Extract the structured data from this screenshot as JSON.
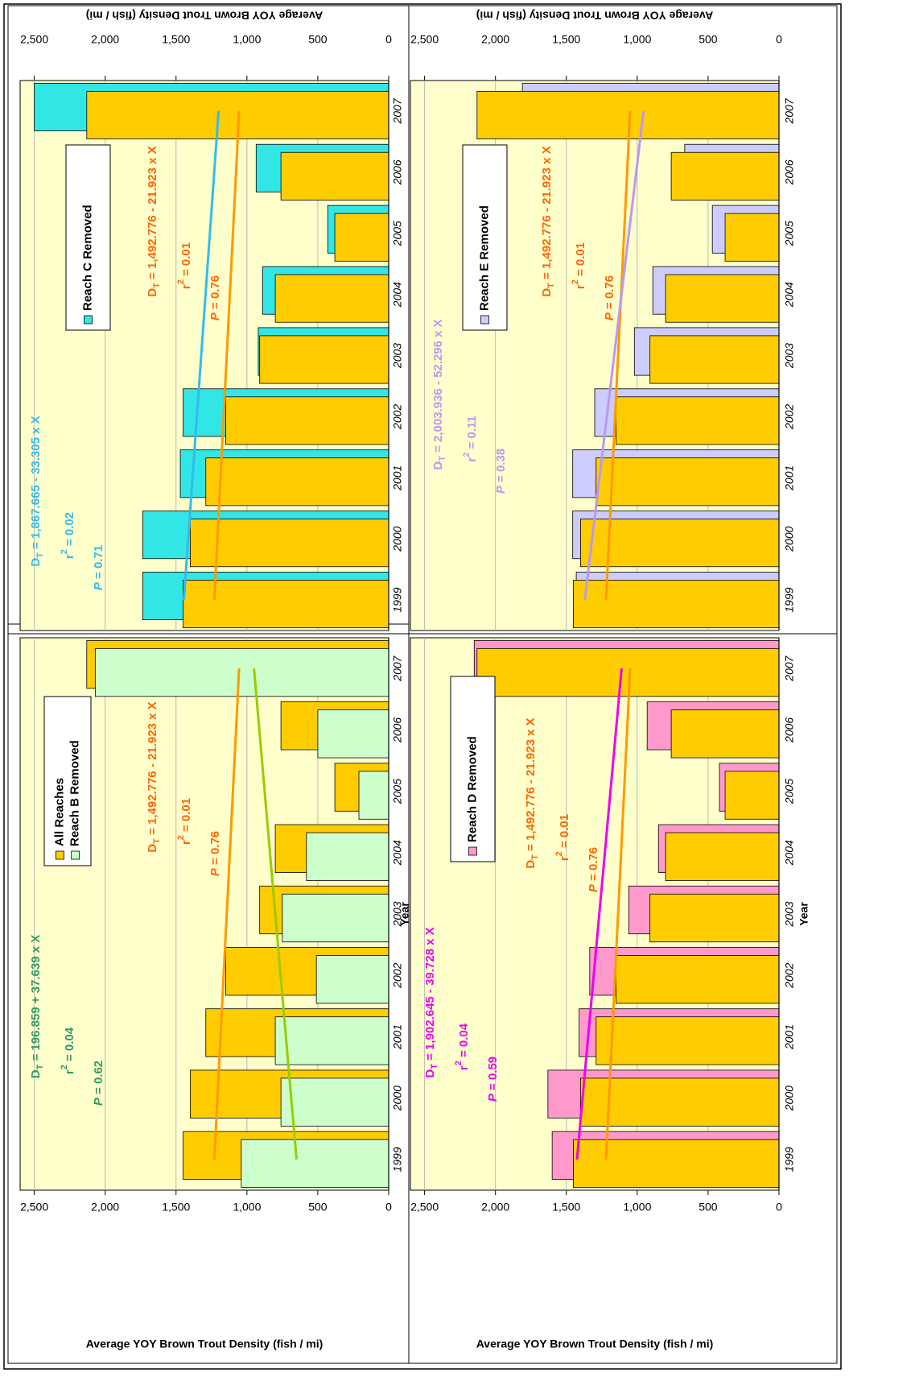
{
  "chart_data": [
    {
      "type": "bar",
      "categories": [
        "1999",
        "2000",
        "2001",
        "2002",
        "2003",
        "2004",
        "2005",
        "2006",
        "2007"
      ],
      "series": [
        {
          "name": "All Reaches",
          "color": "#ffcc00",
          "values": [
            1450,
            1400,
            1290,
            1150,
            910,
            800,
            380,
            760,
            2130
          ]
        },
        {
          "name": "Reach B Removed",
          "color": "#ccffcc",
          "values": [
            1040,
            760,
            800,
            510,
            750,
            580,
            210,
            500,
            2070
          ]
        }
      ],
      "trend_lines": [
        {
          "color": "#ff9900",
          "x": [
            "1999",
            "2007"
          ],
          "values": [
            1230,
            1055
          ]
        },
        {
          "color": "#99cc00",
          "x": [
            "1999",
            "2007"
          ],
          "values": [
            650,
            950
          ]
        }
      ],
      "annotations": [
        {
          "color": "#339966",
          "equation": {
            "lhs": "D",
            "sub": "T",
            "rhs": " = 196.859 + 37.639 x X"
          },
          "r2": {
            "lhs": "r",
            "sup": "2",
            "rhs": " = 0.04"
          },
          "p": {
            "lhs": "P",
            "rhs": " = 0.62"
          }
        },
        {
          "color": "#ff6600",
          "equation": {
            "lhs": "D",
            "sub": "T",
            "rhs": " = 1,492.776 - 21.923 x X"
          },
          "r2": {
            "lhs": "r",
            "sup": "2",
            "rhs": " = 0.01"
          },
          "p": {
            "lhs": "P",
            "rhs": " = 0.76"
          }
        }
      ],
      "y_label": "Average YOY Brown Trout Density (fish / mi)",
      "x_label": "Year",
      "ylim": [
        0,
        2600
      ],
      "yticks": [
        0,
        500,
        {
          "value": 1000,
          "label": "1,000"
        },
        {
          "value": 1500,
          "label": "1,500"
        },
        {
          "value": 2000,
          "label": "2,000"
        },
        {
          "value": 2500,
          "label": "2,500"
        }
      ],
      "grid": true,
      "background": "#ffffcc"
    },
    {
      "type": "bar",
      "categories": [
        "1999",
        "2000",
        "2001",
        "2002",
        "2003",
        "2004",
        "2005",
        "2006",
        "2007"
      ],
      "series": [
        {
          "name": "Reach C Removed",
          "color": "#33e6e6",
          "values": [
            1735,
            1735,
            1470,
            1450,
            920,
            890,
            430,
            935,
            2500
          ]
        },
        {
          "color": "#ffcc00",
          "values": [
            1450,
            1400,
            1290,
            1150,
            910,
            800,
            380,
            760,
            2130
          ]
        }
      ],
      "trend_lines": [
        {
          "color": "#ff9900",
          "x": [
            "1999",
            "2007"
          ],
          "values": [
            1230,
            1055
          ]
        },
        {
          "color": "#33bbee",
          "x": [
            "1999",
            "2007"
          ],
          "values": [
            1445,
            1200
          ]
        }
      ],
      "annotations": [
        {
          "color": "#33bbee",
          "equation": {
            "lhs": "D",
            "sub": "T",
            "rhs": " = 1,867.665 - 33.305 x X"
          },
          "r2": {
            "lhs": "r",
            "sup": "2",
            "rhs": " = 0.02"
          },
          "p": {
            "lhs": "P",
            "rhs": " = 0.71"
          }
        },
        {
          "color": "#ff6600",
          "equation": {
            "lhs": "D",
            "sub": "T",
            "rhs": " = 1,492.776 - 21.923 x X"
          },
          "r2": {
            "lhs": "r",
            "sup": "2",
            "rhs": " = 0.01"
          },
          "p": {
            "lhs": "P",
            "rhs": " = 0.76"
          }
        }
      ],
      "y_label": "Average YOY Brown Trout Density (fish / mi)",
      "ylim": [
        0,
        2600
      ],
      "yticks": [
        0,
        500,
        {
          "value": 1000,
          "label": "1,000"
        },
        {
          "value": 1500,
          "label": "1,500"
        },
        {
          "value": 2000,
          "label": "2,000"
        },
        {
          "value": 2500,
          "label": "2,500"
        }
      ],
      "grid": true,
      "background": "#ffffcc"
    },
    {
      "type": "bar",
      "categories": [
        "1999",
        "2000",
        "2001",
        "2002",
        "2003",
        "2004",
        "2005",
        "2006",
        "2007"
      ],
      "series": [
        {
          "name": "Reach D Removed",
          "color": "#ff99cc",
          "values": [
            1600,
            1630,
            1410,
            1335,
            1060,
            850,
            420,
            930,
            2150
          ]
        },
        {
          "color": "#ffcc00",
          "values": [
            1450,
            1400,
            1290,
            1150,
            910,
            800,
            380,
            760,
            2130
          ]
        }
      ],
      "trend_lines": [
        {
          "color": "#ff9900",
          "x": [
            "1999",
            "2007"
          ],
          "values": [
            1220,
            1050
          ]
        },
        {
          "color": "#ee00ee",
          "x": [
            "1999",
            "2007"
          ],
          "values": [
            1425,
            1110
          ]
        }
      ],
      "annotations": [
        {
          "color": "#ee00ee",
          "equation": {
            "lhs": "D",
            "sub": "T",
            "rhs": " = 1,902.645 - 39.728 x X"
          },
          "r2": {
            "lhs": "r",
            "sup": "2",
            "rhs": " = 0.04"
          },
          "p": {
            "lhs": "P",
            "rhs": " = 0.59"
          }
        },
        {
          "color": "#ff6600",
          "equation": {
            "lhs": "D",
            "sub": "T",
            "rhs": " = 1,492.776 - 21.923 x X"
          },
          "r2": {
            "lhs": "r",
            "sup": "2",
            "rhs": " = 0.01"
          },
          "p": {
            "lhs": "P",
            "rhs": " = 0.76"
          }
        }
      ],
      "y_label": "Average YOY Brown Trout Density (fish / mi)",
      "x_label": "Year",
      "ylim": [
        0,
        2600
      ],
      "yticks": [
        0,
        500,
        {
          "value": 1000,
          "label": "1,000"
        },
        {
          "value": 1500,
          "label": "1,500"
        },
        {
          "value": 2000,
          "label": "2,000"
        },
        {
          "value": 2500,
          "label": "2,500"
        }
      ],
      "grid": true,
      "background": "#ffffcc"
    },
    {
      "type": "bar",
      "categories": [
        "1999",
        "2000",
        "2001",
        "2002",
        "2003",
        "2004",
        "2005",
        "2006",
        "2007"
      ],
      "series": [
        {
          "name": "Reach E Removed",
          "color": "#ccccff",
          "values": [
            1430,
            1455,
            1455,
            1300,
            1020,
            890,
            470,
            665,
            1810
          ]
        },
        {
          "color": "#ffcc00",
          "values": [
            1450,
            1400,
            1290,
            1150,
            910,
            800,
            380,
            760,
            2130
          ]
        }
      ],
      "trend_lines": [
        {
          "color": "#ff9900",
          "x": [
            "1999",
            "2007"
          ],
          "values": [
            1220,
            1050
          ]
        },
        {
          "color": "#bb99ee",
          "x": [
            "1999",
            "2007"
          ],
          "values": [
            1370,
            955
          ]
        }
      ],
      "annotations": [
        {
          "color": "#bb99ee",
          "equation": {
            "lhs": "D",
            "sub": "T",
            "rhs": " = 2,003.936 - 52.296 x X"
          },
          "r2": {
            "lhs": "r",
            "sup": "2",
            "rhs": " = 0.11"
          },
          "p": {
            "lhs": "P",
            "rhs": " = 0.38"
          }
        },
        {
          "color": "#ff6600",
          "equation": {
            "lhs": "D",
            "sub": "T",
            "rhs": " = 1,492.776 - 21.923 x X"
          },
          "r2": {
            "lhs": "r",
            "sup": "2",
            "rhs": " = 0.01"
          },
          "p": {
            "lhs": "P",
            "rhs": " = 0.76"
          }
        }
      ],
      "y_label": "Average YOY Brown Trout Density (fish / mi)",
      "ylim": [
        0,
        2600
      ],
      "yticks": [
        0,
        500,
        {
          "value": 1000,
          "label": "1,000"
        },
        {
          "value": 1500,
          "label": "1,500"
        },
        {
          "value": 2000,
          "label": "2,000"
        },
        {
          "value": 2500,
          "label": "2,500"
        }
      ],
      "grid": true,
      "background": "#ffffcc"
    }
  ]
}
